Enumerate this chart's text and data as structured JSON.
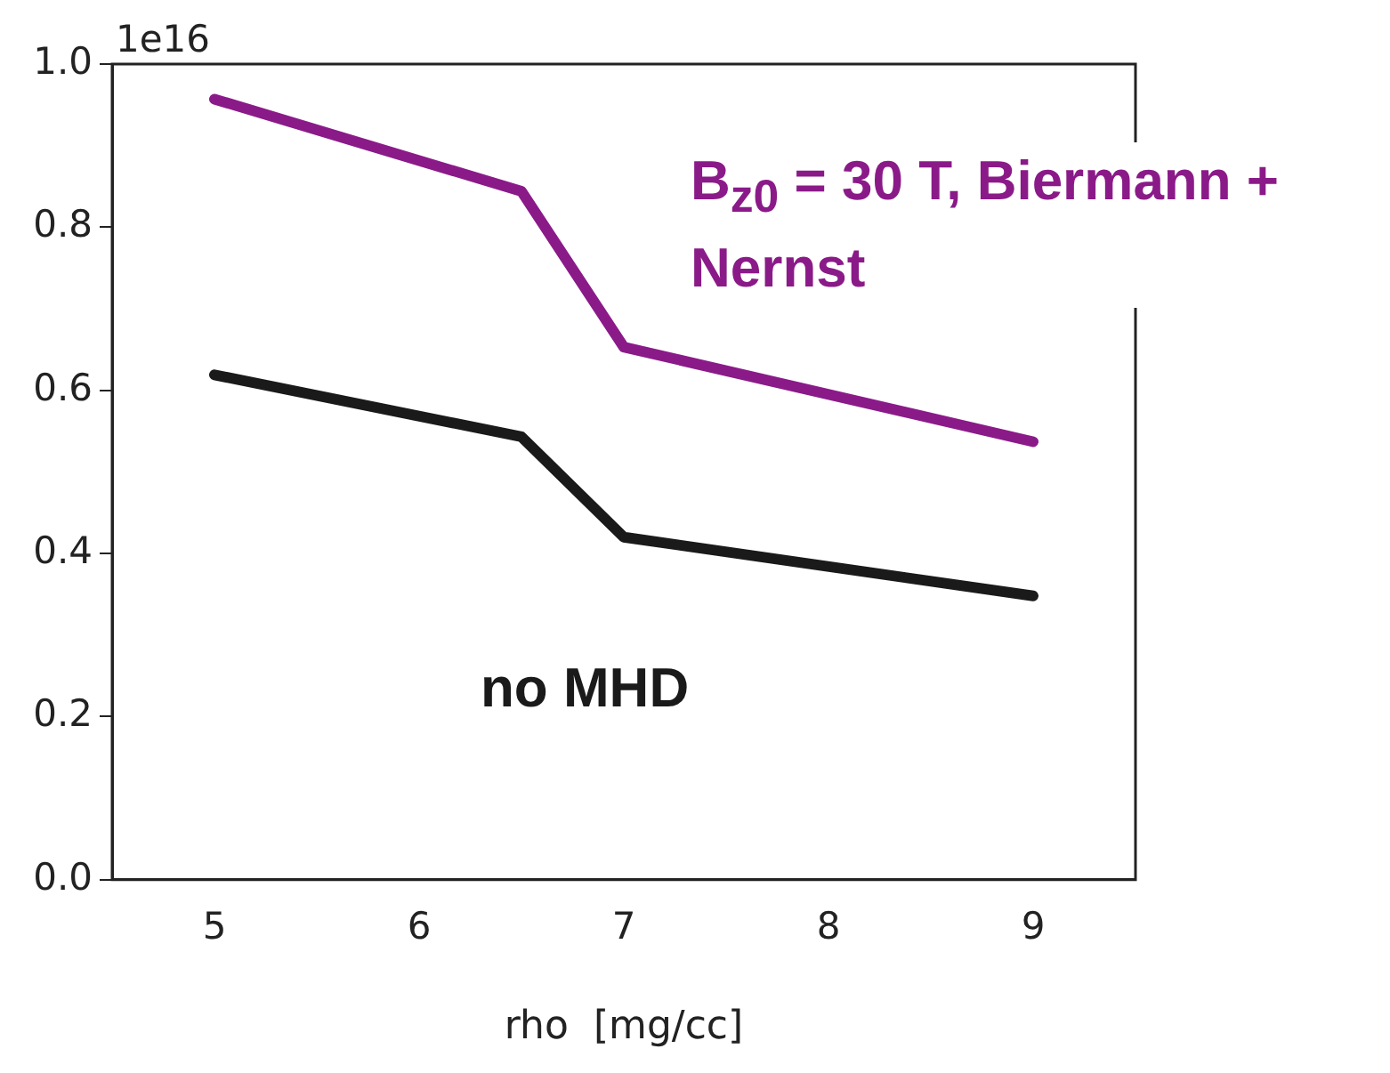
{
  "chart_data": {
    "type": "line",
    "xlabel": "rho  [mg/cc]",
    "x": [
      5,
      6.5,
      7,
      9
    ],
    "series": [
      {
        "name": "B$_{z0}$ = 30 T, Biermann + Nernst",
        "color": "#8b1a89",
        "values": [
          0.957,
          0.844,
          0.653,
          0.537
        ]
      },
      {
        "name": "no MHD",
        "color": "#1a1a1a",
        "values": [
          0.619,
          0.543,
          0.42,
          0.348
        ]
      }
    ],
    "xlim": [
      4.5,
      9.5
    ],
    "xticks": [
      5,
      6,
      7,
      8,
      9
    ],
    "ylim": [
      0,
      1
    ],
    "yticks": [
      {
        "value": 0,
        "label": "0.0"
      },
      {
        "value": 0.2,
        "label": "0.2"
      },
      {
        "value": 0.4,
        "label": "0.4"
      },
      {
        "value": 0.6,
        "label": "0.6"
      },
      {
        "value": 0.8,
        "label": "0.8"
      },
      {
        "value": 1,
        "label": "1.0"
      }
    ],
    "annotations": [
      "1e16"
    ],
    "grid": false,
    "legend": false,
    "marker": "none",
    "line_style": "solid"
  }
}
